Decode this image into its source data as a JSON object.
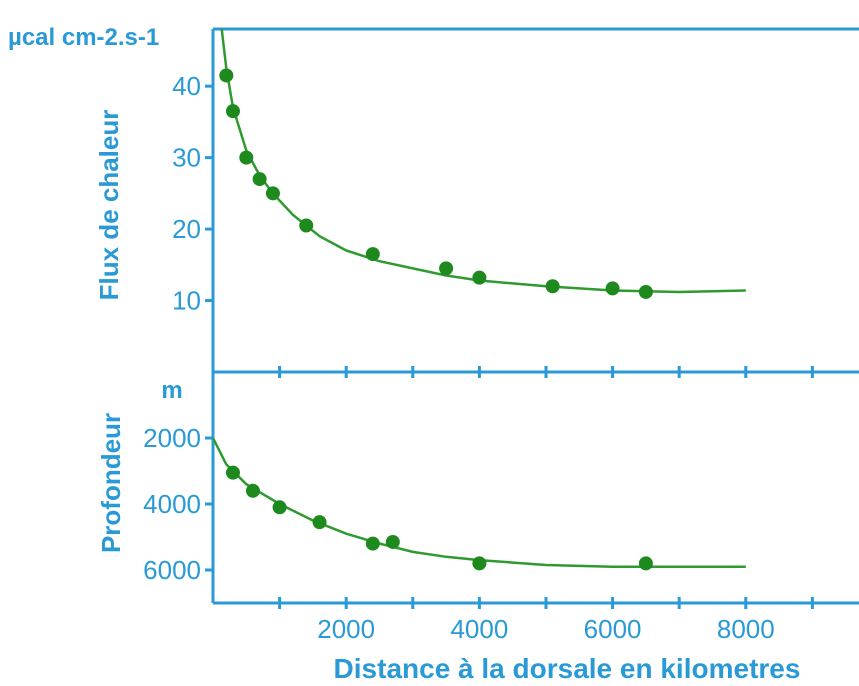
{
  "colors": {
    "axis": "#2a9ad6",
    "data": "#1e8a1e",
    "curve": "#2f9a2f"
  },
  "chart_data": [
    {
      "type": "scatter",
      "ylabel": "Flux de chaleur",
      "unit": "µcal cm-2.s-1",
      "ylim": [
        0,
        48
      ],
      "xlim": [
        0,
        9700
      ],
      "yticks": [
        {
          "value": 10,
          "label": "10"
        },
        {
          "value": 20,
          "label": "20"
        },
        {
          "value": 30,
          "label": "30"
        },
        {
          "value": 40,
          "label": "40"
        }
      ],
      "points": {
        "x": [
          200,
          300,
          500,
          700,
          900,
          1400,
          2400,
          3500,
          4000,
          5100,
          6000,
          6500
        ],
        "y": [
          41.5,
          36.5,
          30,
          27,
          25,
          20.5,
          16.5,
          14.5,
          13.2,
          12,
          11.7,
          11.2
        ]
      },
      "curve": {
        "x": [
          130,
          200,
          300,
          500,
          700,
          900,
          1200,
          1600,
          2000,
          2500,
          3000,
          3500,
          4000,
          5000,
          6000,
          7000,
          8000
        ],
        "y": [
          48,
          42.5,
          37,
          31,
          27.5,
          25,
          22,
          19,
          17,
          15.5,
          14.5,
          13.5,
          12.8,
          12,
          11.4,
          11.2,
          11.4
        ]
      }
    },
    {
      "type": "scatter",
      "ylabel": "Profondeur",
      "unit": "m",
      "ylim": [
        7000,
        0
      ],
      "xlim": [
        0,
        9700
      ],
      "yticks": [
        {
          "value": 2000,
          "label": "2000"
        },
        {
          "value": 4000,
          "label": "4000"
        },
        {
          "value": 6000,
          "label": "6000"
        }
      ],
      "points": {
        "x": [
          300,
          600,
          1000,
          1600,
          2400,
          2700,
          4000,
          6500
        ],
        "y": [
          3050,
          3600,
          4100,
          4550,
          5200,
          5150,
          5800,
          5800
        ]
      },
      "curve": {
        "x": [
          0,
          200,
          500,
          1000,
          1500,
          2000,
          2500,
          3000,
          3500,
          4000,
          5000,
          6000,
          7000,
          8000
        ],
        "y": [
          2000,
          2800,
          3400,
          4000,
          4500,
          4900,
          5200,
          5450,
          5600,
          5700,
          5850,
          5900,
          5900,
          5900
        ]
      }
    }
  ],
  "xaxis": {
    "label": "Distance à la dorsale en kilometres",
    "tick_values": [
      1000,
      2000,
      3000,
      4000,
      5000,
      6000,
      7000,
      8000,
      9000
    ],
    "labels": [
      {
        "value": 2000,
        "label": "2000"
      },
      {
        "value": 4000,
        "label": "4000"
      },
      {
        "value": 6000,
        "label": "6000"
      },
      {
        "value": 8000,
        "label": "8000"
      }
    ]
  }
}
